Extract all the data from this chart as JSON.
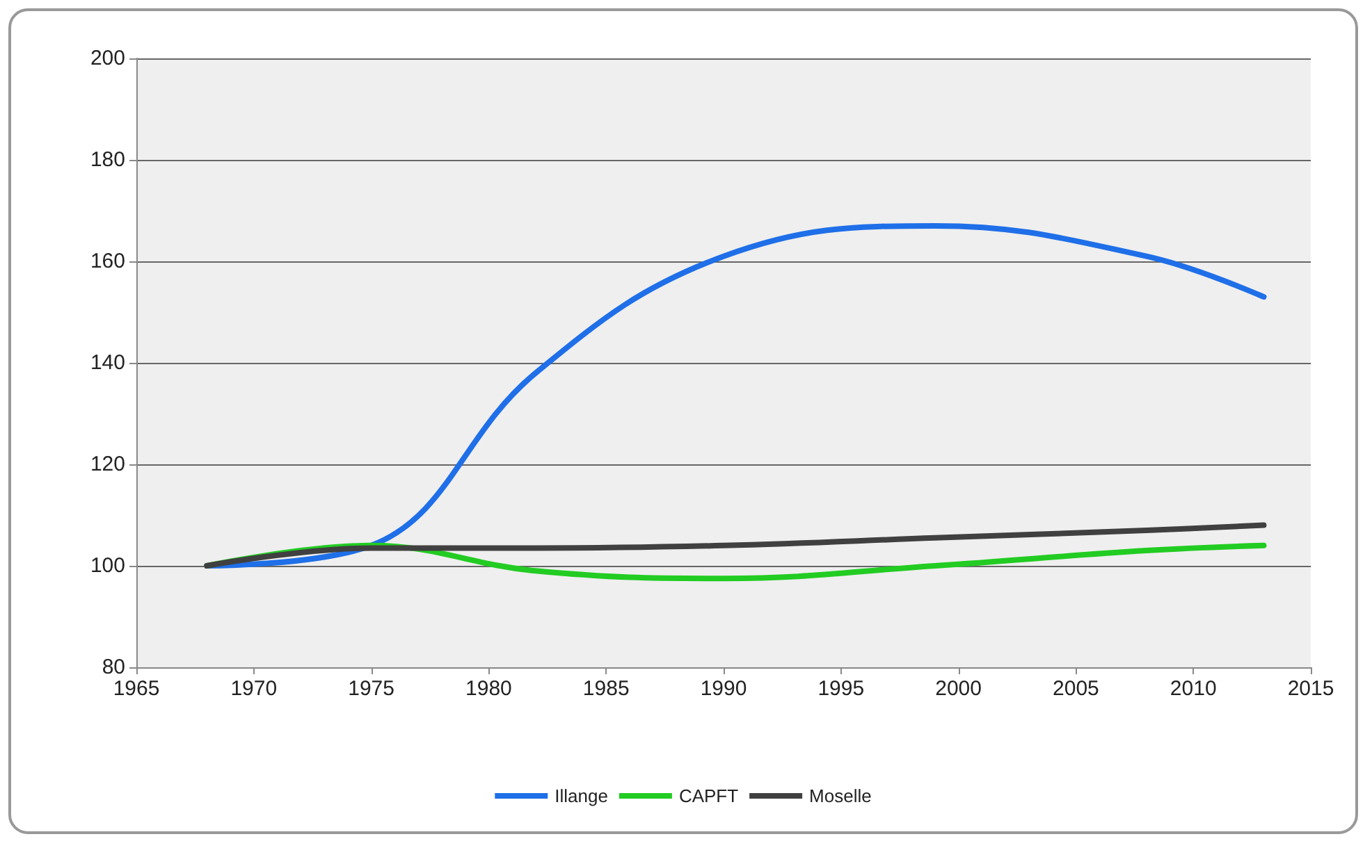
{
  "chart_data": {
    "type": "line",
    "x": [
      1968,
      1975,
      1982,
      1990,
      1999,
      2008,
      2013
    ],
    "series": [
      {
        "name": "Illange",
        "color": "#1f6fe8",
        "values": [
          100,
          104,
          138,
          161,
          167,
          161,
          153
        ]
      },
      {
        "name": "CAPFT",
        "color": "#22cc22",
        "values": [
          100,
          104,
          99,
          97.5,
          100,
          103,
          104
        ]
      },
      {
        "name": "Moselle",
        "color": "#404040",
        "values": [
          100,
          103.5,
          103.5,
          104,
          105.5,
          107,
          108
        ]
      }
    ],
    "xlim": [
      1965,
      2015
    ],
    "xticks": [
      1965,
      1970,
      1975,
      1980,
      1985,
      1990,
      1995,
      2000,
      2005,
      2010,
      2015
    ],
    "ylim": [
      80,
      200
    ],
    "yticks": [
      80,
      100,
      120,
      140,
      160,
      180,
      200
    ],
    "grid": "y",
    "legend": "bottom",
    "marker": "none",
    "line_style": "solid"
  }
}
